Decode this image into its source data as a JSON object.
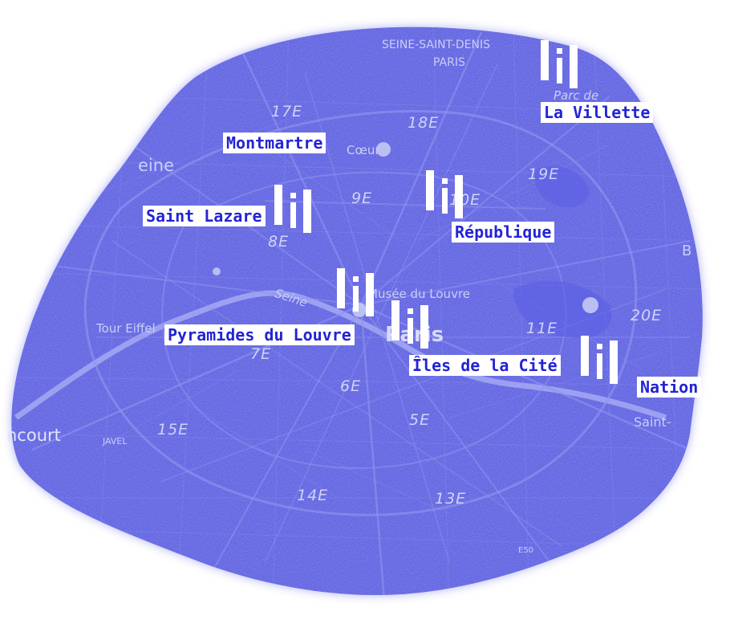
{
  "colors": {
    "map_fill": "#4a4fe0",
    "street": "#8f93f0",
    "label_text": "#2323d6",
    "label_bg": "#ffffff"
  },
  "map_labels": {
    "top1": "SEINE-SAINT-DENIS",
    "top2": "PARIS",
    "e17": "17E",
    "e18": "18E",
    "e19": "19E",
    "e9": "9E",
    "e10": "10E",
    "e8": "8E",
    "e11": "11E",
    "e20": "20E",
    "e7": "7E",
    "e6": "6E",
    "e5": "5E",
    "e15": "15E",
    "e14": "14E",
    "e13": "13E",
    "parc": "Parc de",
    "coeur": "Cœur",
    "seine_left": "eine",
    "seine_river": "Seine",
    "musee": "Musée du Louvre",
    "paris_center": "Paris",
    "tour": "Tour Eiffel",
    "grenelle": "ncourt",
    "javel": "JAVEL",
    "saint": "Saint-",
    "e50": "E50",
    "b": "B"
  },
  "locations": [
    {
      "id": "la-villette",
      "name": "La Villette"
    },
    {
      "id": "montmartre",
      "name": "Montmartre"
    },
    {
      "id": "saint-lazare",
      "name": "Saint Lazare"
    },
    {
      "id": "republique",
      "name": "République"
    },
    {
      "id": "pyramides-du-louvre",
      "name": "Pyramides du Louvre"
    },
    {
      "id": "iles-de-la-cite",
      "name": "Îles de la Cité"
    },
    {
      "id": "nation",
      "name": "Nation"
    }
  ],
  "marker_icon": "info-icon"
}
